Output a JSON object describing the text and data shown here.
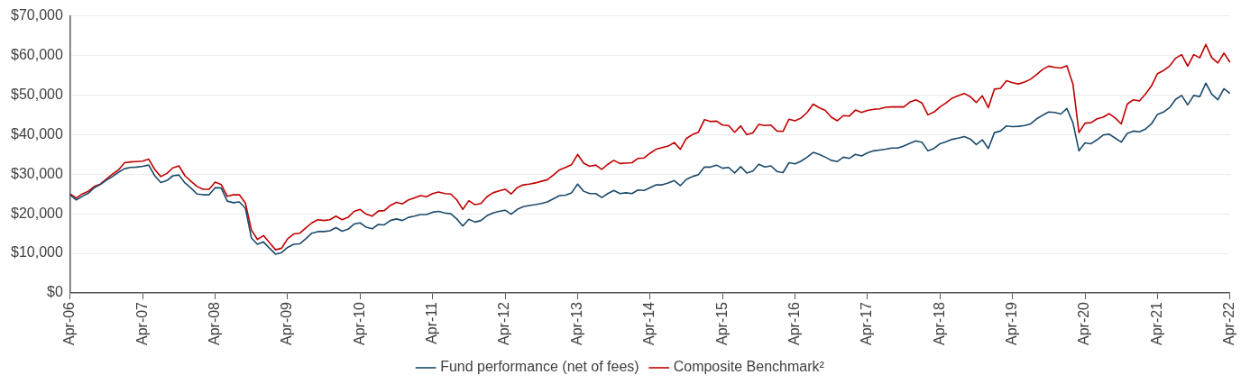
{
  "chart_data": {
    "type": "line",
    "categories": [
      "Apr-06",
      null,
      null,
      null,
      null,
      null,
      null,
      null,
      null,
      null,
      null,
      null,
      "Apr-07",
      null,
      null,
      null,
      null,
      null,
      null,
      null,
      null,
      null,
      null,
      null,
      "Apr-08",
      null,
      null,
      null,
      null,
      null,
      null,
      null,
      null,
      null,
      null,
      null,
      "Apr-09",
      null,
      null,
      null,
      null,
      null,
      null,
      null,
      null,
      null,
      null,
      null,
      "Apr-10",
      null,
      null,
      null,
      null,
      null,
      null,
      null,
      null,
      null,
      null,
      null,
      "Apr-11",
      null,
      null,
      null,
      null,
      null,
      null,
      null,
      null,
      null,
      null,
      null,
      "Apr-12",
      null,
      null,
      null,
      null,
      null,
      null,
      null,
      null,
      null,
      null,
      null,
      "Apr-13",
      null,
      null,
      null,
      null,
      null,
      null,
      null,
      null,
      null,
      null,
      null,
      "Apr-14",
      null,
      null,
      null,
      null,
      null,
      null,
      null,
      null,
      null,
      null,
      null,
      "Apr-15",
      null,
      null,
      null,
      null,
      null,
      null,
      null,
      null,
      null,
      null,
      null,
      "Apr-16",
      null,
      null,
      null,
      null,
      null,
      null,
      null,
      null,
      null,
      null,
      null,
      "Apr-17",
      null,
      null,
      null,
      null,
      null,
      null,
      null,
      null,
      null,
      null,
      null,
      "Apr-18",
      null,
      null,
      null,
      null,
      null,
      null,
      null,
      null,
      null,
      null,
      null,
      "Apr-19",
      null,
      null,
      null,
      null,
      null,
      null,
      null,
      null,
      null,
      null,
      null,
      "Apr-20",
      null,
      null,
      null,
      null,
      null,
      null,
      null,
      null,
      null,
      null,
      null,
      "Apr-21",
      null,
      null,
      null,
      null,
      null,
      null,
      null,
      null,
      null,
      null,
      null,
      "Apr-22"
    ],
    "series": [
      {
        "name": "Fund performance (net of fees)",
        "color": "#1b4a6b",
        "values": [
          24800,
          23500,
          24400,
          25200,
          26600,
          27400,
          28500,
          29400,
          30500,
          31400,
          31700,
          31800,
          32000,
          32300,
          29600,
          27900,
          28400,
          29600,
          29800,
          27800,
          26500,
          25000,
          24800,
          24800,
          26600,
          26500,
          23200,
          22800,
          23000,
          21400,
          13900,
          12300,
          12900,
          11300,
          9800,
          10200,
          11500,
          12300,
          12400,
          13700,
          15100,
          15500,
          15500,
          15700,
          16500,
          15600,
          16100,
          17400,
          17700,
          16600,
          16200,
          17300,
          17200,
          18300,
          18700,
          18300,
          19100,
          19400,
          19800,
          19800,
          20400,
          20600,
          20200,
          20000,
          18700,
          16900,
          18600,
          17900,
          18300,
          19500,
          20200,
          20600,
          20900,
          19900,
          21100,
          21800,
          22100,
          22300,
          22600,
          23000,
          23800,
          24600,
          24700,
          25300,
          27500,
          25700,
          25100,
          25100,
          24100,
          25100,
          25900,
          25100,
          25300,
          25100,
          26000,
          25900,
          26600,
          27300,
          27300,
          27800,
          28400,
          27100,
          28700,
          29400,
          29900,
          31800,
          31800,
          32300,
          31500,
          31700,
          30300,
          31900,
          30300,
          30800,
          32500,
          31800,
          32100,
          30700,
          30400,
          32900,
          32600,
          33300,
          34300,
          35500,
          35000,
          34300,
          33500,
          33200,
          34300,
          34000,
          35000,
          34600,
          35400,
          35900,
          36100,
          36300,
          36600,
          36600,
          37100,
          37800,
          38400,
          38100,
          35900,
          36500,
          37700,
          38200,
          38800,
          39100,
          39500,
          38900,
          37500,
          38700,
          36500,
          40500,
          40900,
          42200,
          42000,
          42100,
          42300,
          42700,
          44000,
          44900,
          45700,
          45600,
          45200,
          46600,
          43000,
          35900,
          37900,
          37700,
          38700,
          39900,
          40100,
          39100,
          38100,
          40300,
          40900,
          40700,
          41400,
          42700,
          45100,
          45700,
          46800,
          48900,
          49900,
          47500,
          49900,
          49600,
          53000,
          50200,
          48800,
          51600,
          50400
        ]
      },
      {
        "name": "Composite Benchmark²",
        "color": "#c00000",
        "values": [
          25000,
          24000,
          25000,
          25700,
          26900,
          27500,
          28800,
          30000,
          31100,
          32900,
          33100,
          33200,
          33300,
          33800,
          31200,
          29400,
          30200,
          31600,
          32100,
          29600,
          28200,
          26900,
          26200,
          26200,
          28000,
          27400,
          24400,
          24800,
          24800,
          22700,
          15900,
          13500,
          14500,
          12700,
          10900,
          11300,
          13700,
          14900,
          15100,
          16400,
          17700,
          18500,
          18300,
          18500,
          19400,
          18500,
          19100,
          20600,
          21100,
          19900,
          19400,
          20700,
          20800,
          22100,
          22900,
          22500,
          23500,
          24000,
          24600,
          24300,
          25100,
          25500,
          25100,
          25000,
          23500,
          21100,
          23300,
          22300,
          22600,
          24300,
          25300,
          25800,
          26200,
          25000,
          26600,
          27300,
          27500,
          27800,
          28200,
          28600,
          29800,
          31100,
          31700,
          32400,
          35000,
          32800,
          32000,
          32300,
          31200,
          32500,
          33500,
          32700,
          32800,
          32900,
          34000,
          34100,
          35300,
          36300,
          36700,
          37100,
          38000,
          36300,
          39000,
          40000,
          40600,
          43800,
          43300,
          43400,
          42400,
          42300,
          40600,
          42200,
          40000,
          40400,
          42600,
          42300,
          42400,
          40900,
          40800,
          43900,
          43500,
          44200,
          45600,
          47700,
          46800,
          46100,
          44400,
          43500,
          44800,
          44700,
          46200,
          45600,
          46100,
          46400,
          46500,
          46900,
          47000,
          47000,
          47000,
          48200,
          48800,
          48000,
          45000,
          45700,
          47000,
          48000,
          49200,
          49800,
          50400,
          49600,
          48100,
          49800,
          46800,
          51500,
          51700,
          53600,
          53100,
          52800,
          53300,
          54000,
          55200,
          56500,
          57300,
          57000,
          56800,
          57400,
          52800,
          40500,
          42900,
          43000,
          44000,
          44400,
          45300,
          44200,
          42700,
          47700,
          48800,
          48500,
          50200,
          52300,
          55400,
          56200,
          57300,
          59300,
          60200,
          57300,
          60200,
          59400,
          62800,
          59400,
          58100,
          60600,
          58300
        ]
      }
    ],
    "ylim": [
      0,
      70000
    ],
    "yticks": [
      {
        "value": 0,
        "label": "$0"
      },
      {
        "value": 10000,
        "label": "$10,000"
      },
      {
        "value": 20000,
        "label": "$20,000"
      },
      {
        "value": 30000,
        "label": "$30,000"
      },
      {
        "value": 40000,
        "label": "$40,000"
      },
      {
        "value": 50000,
        "label": "$50,000"
      },
      {
        "value": 60000,
        "label": "$60,000"
      },
      {
        "value": 70000,
        "label": "$70,000"
      }
    ],
    "grid": "y",
    "legend": "bottom",
    "marker": "none",
    "line_style": "solid"
  }
}
